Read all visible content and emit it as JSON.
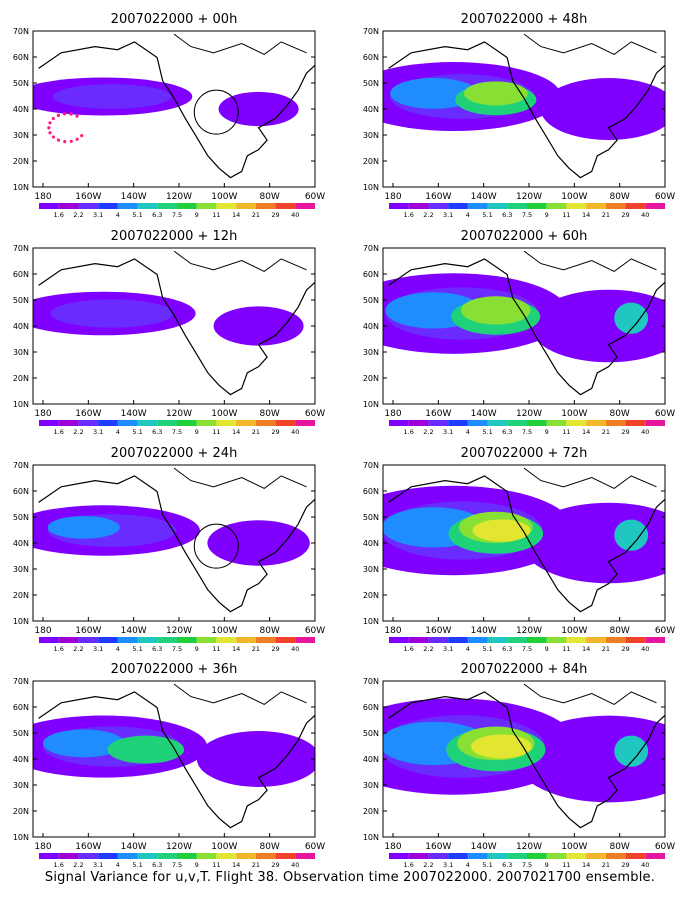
{
  "caption": "Signal Variance for u,v,T. Flight 38. Observation time 2007022000. 2007021700 ensemble.",
  "lat_labels": [
    "70N",
    "60N",
    "50N",
    "40N",
    "30N",
    "20N",
    "10N"
  ],
  "lon_labels": [
    "180",
    "160W",
    "140W",
    "120W",
    "100W",
    "80W",
    "60W"
  ],
  "colorbar": {
    "levels": [
      "1.6",
      "2.2",
      "3.1",
      "4",
      "5.1",
      "6.3",
      "7.5",
      "9",
      "11",
      "14",
      "21",
      "29",
      "40"
    ],
    "colors": [
      "#8000ff",
      "#a000d8",
      "#6a2bff",
      "#1e3cff",
      "#1f8cff",
      "#1fc7c0",
      "#1fd27a",
      "#21cf38",
      "#88e034",
      "#e2e630",
      "#f2b82a",
      "#f07d24",
      "#f0442a",
      "#e8169c"
    ]
  },
  "panels": [
    {
      "title": "2007022000 + 00h",
      "intensity": 0.1,
      "circle": true,
      "dots": true
    },
    {
      "title": "2007022000 + 48h",
      "intensity": 0.55
    },
    {
      "title": "2007022000 + 12h",
      "intensity": 0.18
    },
    {
      "title": "2007022000 + 60h",
      "intensity": 0.72
    },
    {
      "title": "2007022000 + 24h",
      "intensity": 0.28,
      "circle": true
    },
    {
      "title": "2007022000 + 72h",
      "intensity": 0.85
    },
    {
      "title": "2007022000 + 36h",
      "intensity": 0.45
    },
    {
      "title": "2007022000 + 84h",
      "intensity": 0.95
    }
  ]
}
